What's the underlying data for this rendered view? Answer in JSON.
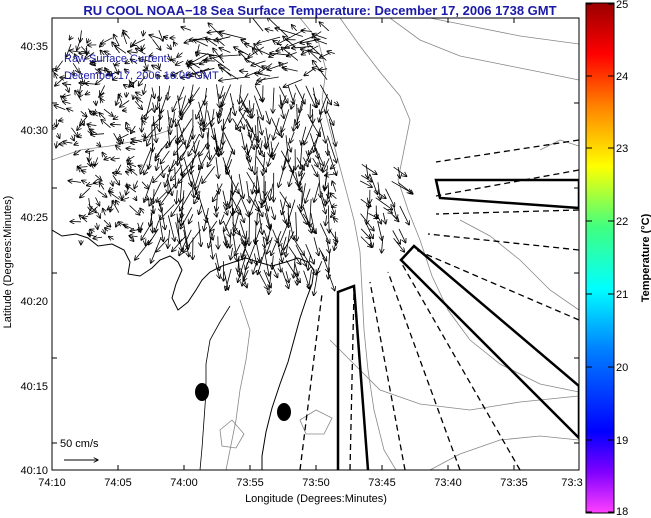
{
  "title": "RU COOL  NOAA−18  Sea Surface Temperature:  December 17, 2006 1738 GMT",
  "annotation": {
    "line1": "Raw Surface Current:",
    "line2": "December 17, 2006 16:00 GMT"
  },
  "scale_label": "50 cm/s",
  "x_axis": {
    "label": "Longitude (Degrees:Minutes)",
    "ticks": [
      "74:10",
      "74:05",
      "74:00",
      "73:55",
      "73:50",
      "73:45",
      "73:40",
      "73:35",
      "73:3"
    ]
  },
  "y_axis": {
    "label": "Latitude (Degrees:Minutes)",
    "ticks": [
      "40:35",
      "40:30",
      "40:25",
      "40:20",
      "40:15",
      "40:10"
    ]
  },
  "colorbar": {
    "label": "Temperature (°C)",
    "ticks": [
      "25",
      "24",
      "23",
      "22",
      "21",
      "20",
      "19",
      "18"
    ],
    "colors": [
      "#9a0000",
      "#ff0000",
      "#ff8000",
      "#ffff00",
      "#40ff80",
      "#00ffff",
      "#0080ff",
      "#0000ff",
      "#ff40ff"
    ]
  }
}
